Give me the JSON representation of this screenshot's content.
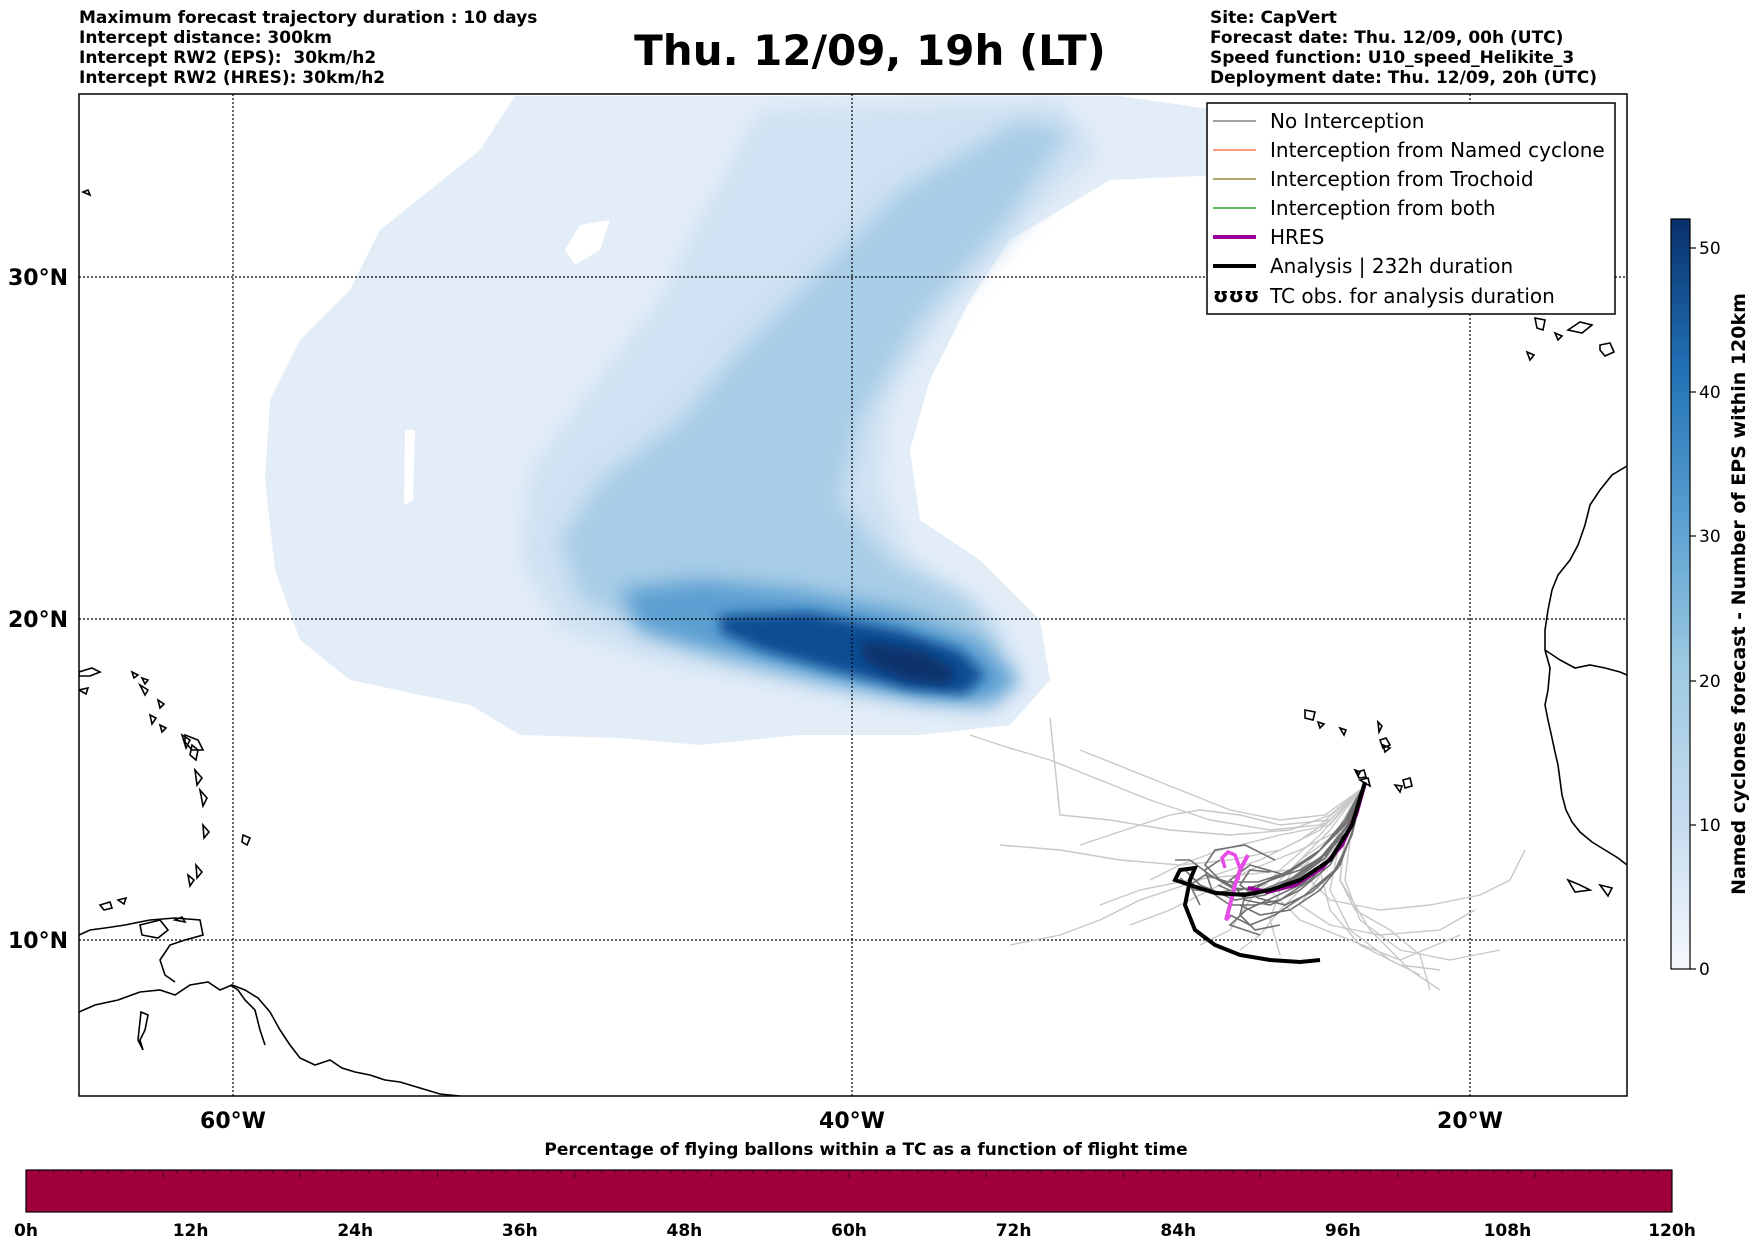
{
  "header_left": [
    "Maximum forecast trajectory duration : 10 days",
    "Intercept distance: 300km",
    "Intercept RW2 (EPS):  30km/h2",
    "Intercept RW2 (HRES): 30km/h2"
  ],
  "header_right": [
    "Site: CapVert",
    "Forecast date: Thu. 12/09, 00h (UTC)",
    "Speed function: U10_speed_Helikite_3",
    "Deployment date: Thu. 12/09, 20h (UTC)"
  ],
  "title": "Thu. 12/09, 19h (LT)",
  "map": {
    "lat_labels": [
      "30°N",
      "20°N",
      "10°N"
    ],
    "lon_labels": [
      "60°W",
      "40°W",
      "20°W"
    ],
    "lat_range": [
      5.5,
      35
    ],
    "lon_range": [
      -65,
      -15
    ]
  },
  "legend": [
    {
      "label": "No Interception",
      "color": "#808080",
      "style": "thin"
    },
    {
      "label": "Interception from Named cyclone",
      "color": "#ff7f50",
      "style": "thin"
    },
    {
      "label": "Interception from Trochoid",
      "color": "#9b8b3a",
      "style": "thin"
    },
    {
      "label": "Interception from both",
      "color": "#2ca02c",
      "style": "thin"
    },
    {
      "label": "HRES",
      "color": "#990099",
      "style": "thick"
    },
    {
      "label": "Analysis | 232h duration",
      "color": "#000000",
      "style": "thick"
    },
    {
      "label": "TC obs. for analysis duration",
      "color": "#000000",
      "style": "symbol",
      "symbol": "ʊʊʊ"
    }
  ],
  "colorbar": {
    "label": "Named cyclones forecast - Number of EPS within 120km",
    "ticks": [
      "0",
      "10",
      "20",
      "30",
      "40",
      "50"
    ],
    "max": 52
  },
  "percentage_bar": {
    "title": "Percentage of flying ballons within a TC as a function of flight time",
    "ticks": [
      "0h",
      "12h",
      "24h",
      "36h",
      "48h",
      "60h",
      "72h",
      "84h",
      "96h",
      "108h",
      "120h"
    ],
    "color": "#a0003c"
  },
  "colors": {
    "density_light": "#e3edf8",
    "density_mid": "#9ec9e3",
    "density_dark": "#0b4e94",
    "hres": "#990099",
    "hres_light": "#e64de6",
    "analysis": "#000000"
  }
}
